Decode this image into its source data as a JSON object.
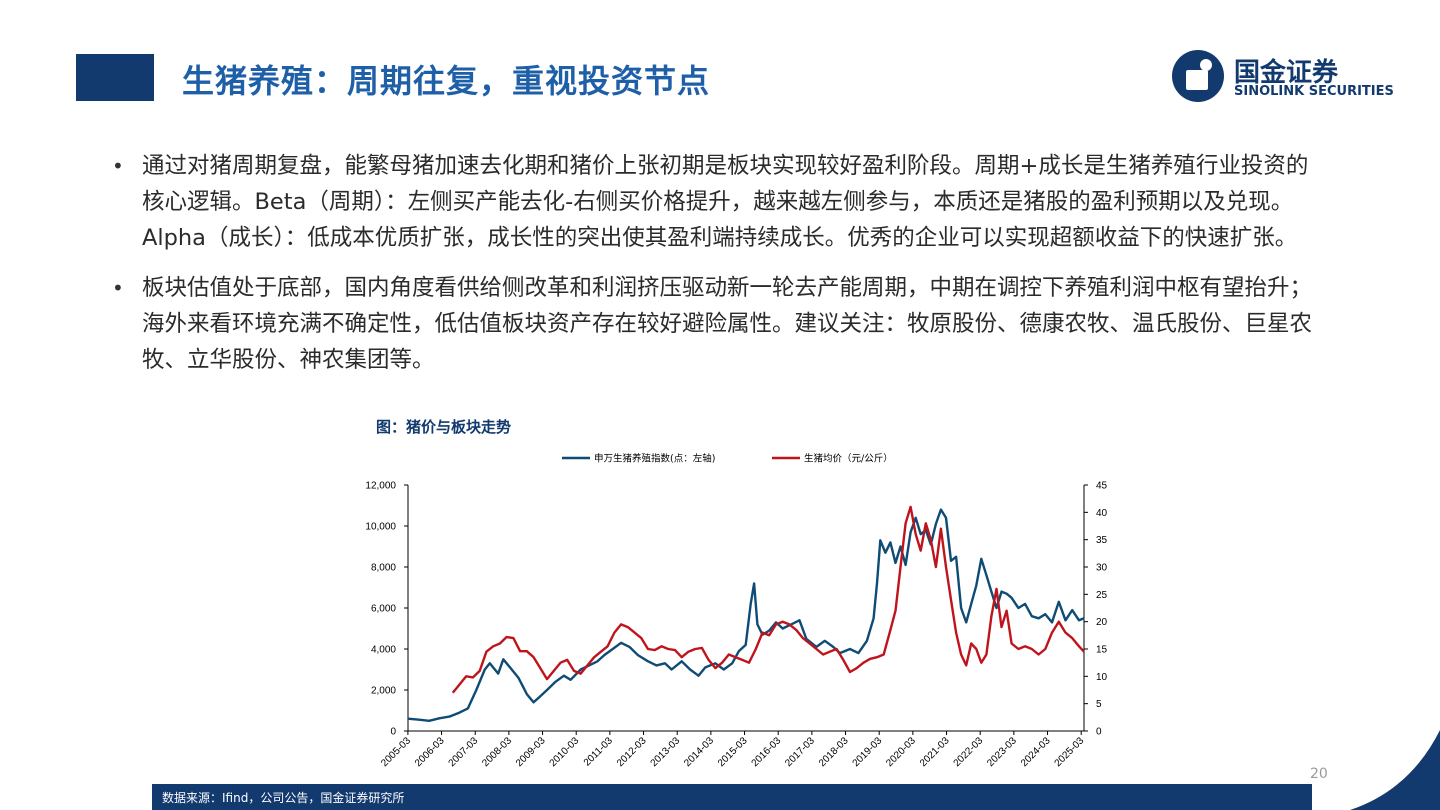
{
  "header": {
    "title": "生猪养殖：周期往复，重视投资节点",
    "logo_cn": "国金证券",
    "logo_en": "SINOLINK SECURITIES"
  },
  "bullets": [
    "通过对猪周期复盘，能繁母猪加速去化期和猪价上张初期是板块实现较好盈利阶段。周期+成长是生猪养殖行业投资的核心逻辑。Beta（周期）：左侧买产能去化-右侧买价格提升，越来越左侧参与，本质还是猪股的盈利预期以及兑现。Alpha（成长）：低成本优质扩张，成长性的突出使其盈利端持续成长。优秀的企业可以实现超额收益下的快速扩张。",
    "板块估值处于底部，国内角度看供给侧改革和利润挤压驱动新一轮去产能周期，中期在调控下养殖利润中枢有望抬升；海外来看环境充满不确定性，低估值板块资产存在较好避险属性。建议关注：牧原股份、德康农牧、温氏股份、巨星农牧、立华股份、神农集团等。"
  ],
  "chart_caption": "图：猪价与板块走势",
  "footer": {
    "source": "数据来源：Ifind，公司公告，国金证券研究所",
    "page": "20"
  },
  "colors": {
    "brand": "#123a6e",
    "title": "#1f5fa8",
    "index_line": "#0f4c75",
    "price_line": "#c0141c"
  },
  "chart_data": {
    "type": "line",
    "title": "",
    "legend_position": "top",
    "x_ticks": [
      "2005-03",
      "2006-03",
      "2007-03",
      "2008-03",
      "2009-03",
      "2010-03",
      "2011-03",
      "2012-03",
      "2013-03",
      "2014-03",
      "2015-03",
      "2016-03",
      "2017-03",
      "2018-03",
      "2019-03",
      "2020-03",
      "2021-03",
      "2022-03",
      "2023-03",
      "2024-03",
      "2025-03"
    ],
    "y_left": {
      "min": 0,
      "max": 12000,
      "ticks": [
        "0",
        "2,000",
        "4,000",
        "6,000",
        "8,000",
        "10,000",
        "12,000"
      ]
    },
    "y_right": {
      "min": 0,
      "max": 45,
      "ticks": [
        "0",
        "5",
        "10",
        "15",
        "20",
        "25",
        "30",
        "35",
        "40",
        "45"
      ]
    },
    "grid": false,
    "series": [
      {
        "name": "申万生猪养殖指数(点：左轴)",
        "axis": "left",
        "x": [
          2005.17,
          2005.5,
          2005.8,
          2006.1,
          2006.4,
          2006.7,
          2006.95,
          2007.2,
          2007.45,
          2007.6,
          2007.85,
          2008.0,
          2008.2,
          2008.45,
          2008.7,
          2008.9,
          2009.1,
          2009.3,
          2009.55,
          2009.8,
          2010.0,
          2010.3,
          2010.55,
          2010.8,
          2011.0,
          2011.25,
          2011.5,
          2011.75,
          2012.0,
          2012.3,
          2012.55,
          2012.8,
          2013.0,
          2013.3,
          2013.55,
          2013.8,
          2014.0,
          2014.3,
          2014.55,
          2014.8,
          2015.0,
          2015.2,
          2015.35,
          2015.45,
          2015.55,
          2015.7,
          2015.9,
          2016.1,
          2016.3,
          2016.55,
          2016.8,
          2017.0,
          2017.3,
          2017.55,
          2017.8,
          2018.0,
          2018.3,
          2018.55,
          2018.8,
          2019.0,
          2019.1,
          2019.2,
          2019.35,
          2019.5,
          2019.65,
          2019.8,
          2019.95,
          2020.1,
          2020.25,
          2020.4,
          2020.55,
          2020.7,
          2020.85,
          2021.0,
          2021.15,
          2021.3,
          2021.45,
          2021.6,
          2021.75,
          2021.9,
          2022.05,
          2022.2,
          2022.35,
          2022.5,
          2022.65,
          2022.8,
          2022.95,
          2023.1,
          2023.3,
          2023.5,
          2023.7,
          2023.9,
          2024.1,
          2024.3,
          2024.5,
          2024.7,
          2024.9,
          2025.1,
          2025.25
        ],
        "values": [
          600,
          550,
          500,
          620,
          700,
          900,
          1100,
          2000,
          3000,
          3300,
          2800,
          3500,
          3100,
          2600,
          1800,
          1400,
          1700,
          2000,
          2400,
          2700,
          2500,
          3000,
          3200,
          3400,
          3700,
          4000,
          4300,
          4100,
          3700,
          3400,
          3200,
          3300,
          3000,
          3400,
          3000,
          2700,
          3100,
          3300,
          3000,
          3300,
          3900,
          4200,
          6200,
          7200,
          5200,
          4700,
          4900,
          5300,
          5000,
          5200,
          5400,
          4500,
          4100,
          4400,
          4100,
          3800,
          4000,
          3800,
          4400,
          5500,
          7200,
          9300,
          8700,
          9200,
          8200,
          9000,
          8100,
          9700,
          10400,
          9600,
          9800,
          9100,
          10100,
          10800,
          10400,
          8300,
          8500,
          6000,
          5300,
          6200,
          7100,
          8400,
          7600,
          6800,
          6000,
          6800,
          6700,
          6500,
          6000,
          6200,
          5600,
          5500,
          5700,
          5300,
          6300,
          5400,
          5900,
          5400,
          5500
        ]
      },
      {
        "name": "生猪均价（元/公斤）",
        "axis": "right",
        "x": [
          2006.5,
          2006.7,
          2006.9,
          2007.1,
          2007.3,
          2007.5,
          2007.7,
          2007.9,
          2008.1,
          2008.3,
          2008.5,
          2008.7,
          2008.9,
          2009.1,
          2009.3,
          2009.5,
          2009.7,
          2009.9,
          2010.1,
          2010.3,
          2010.5,
          2010.7,
          2010.9,
          2011.1,
          2011.3,
          2011.5,
          2011.7,
          2011.9,
          2012.1,
          2012.3,
          2012.5,
          2012.7,
          2012.9,
          2013.1,
          2013.3,
          2013.5,
          2013.7,
          2013.9,
          2014.1,
          2014.3,
          2014.5,
          2014.7,
          2014.9,
          2015.1,
          2015.3,
          2015.5,
          2015.7,
          2015.9,
          2016.1,
          2016.3,
          2016.5,
          2016.7,
          2016.9,
          2017.1,
          2017.3,
          2017.5,
          2017.7,
          2017.9,
          2018.1,
          2018.3,
          2018.5,
          2018.7,
          2018.9,
          2019.1,
          2019.3,
          2019.5,
          2019.65,
          2019.8,
          2019.95,
          2020.1,
          2020.25,
          2020.4,
          2020.55,
          2020.7,
          2020.85,
          2021.0,
          2021.15,
          2021.3,
          2021.45,
          2021.6,
          2021.75,
          2021.9,
          2022.05,
          2022.2,
          2022.35,
          2022.5,
          2022.65,
          2022.8,
          2022.95,
          2023.1,
          2023.3,
          2023.5,
          2023.7,
          2023.9,
          2024.1,
          2024.3,
          2024.5,
          2024.7,
          2024.9,
          2025.1,
          2025.25
        ],
        "values": [
          7,
          8.5,
          10,
          9.8,
          11,
          14.5,
          15.5,
          16,
          17.2,
          17,
          14.6,
          14.6,
          13.5,
          11.5,
          9.5,
          11,
          12.5,
          13,
          11,
          10.5,
          12,
          13.5,
          14.5,
          15.5,
          18,
          19.5,
          19,
          18,
          17,
          15,
          14.8,
          15.5,
          15,
          14.8,
          13.5,
          14.5,
          15,
          15.2,
          13,
          11.5,
          12.5,
          14,
          13.5,
          13,
          12.5,
          15,
          18,
          17.5,
          19.5,
          20,
          19.5,
          18.5,
          17,
          16,
          15,
          14,
          14.5,
          15,
          13,
          10.8,
          11.5,
          12.5,
          13.2,
          13.5,
          14,
          18.5,
          22,
          30,
          38,
          41,
          36,
          33,
          38,
          35,
          30,
          37,
          30,
          24,
          18,
          14,
          12,
          16,
          15,
          12.5,
          14,
          21,
          26,
          19,
          22,
          16,
          15,
          15.5,
          15,
          14,
          15,
          18,
          20,
          18,
          17,
          15.5,
          14.5
        ]
      }
    ]
  }
}
